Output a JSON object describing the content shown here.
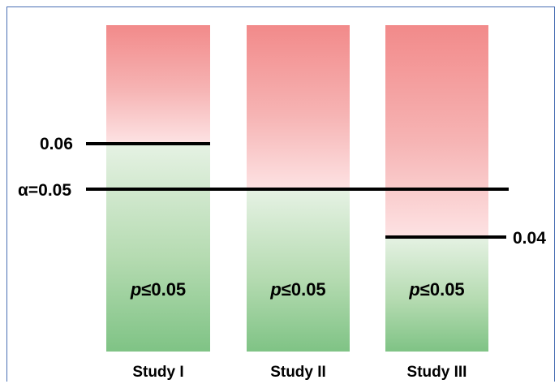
{
  "alpha_label": "α=0.05",
  "threshold_labels": {
    "study1": "0.06",
    "study3": "0.04"
  },
  "bars": [
    {
      "name": "Study I",
      "p_prefix": "p",
      "p_suffix": "≤0.05",
      "line_value": 0.06
    },
    {
      "name": "Study II",
      "p_prefix": "p",
      "p_suffix": "≤0.05",
      "line_value": null
    },
    {
      "name": "Study III",
      "p_prefix": "p",
      "p_suffix": "≤0.05",
      "line_value": 0.04
    }
  ],
  "colors": {
    "line": "#000000",
    "red_top": "#f28a8a",
    "red_bottom": "#fde2e3",
    "green_top": "#e6f2e4",
    "green_bottom": "#7fc385",
    "frame": "#4a6fb3"
  }
}
